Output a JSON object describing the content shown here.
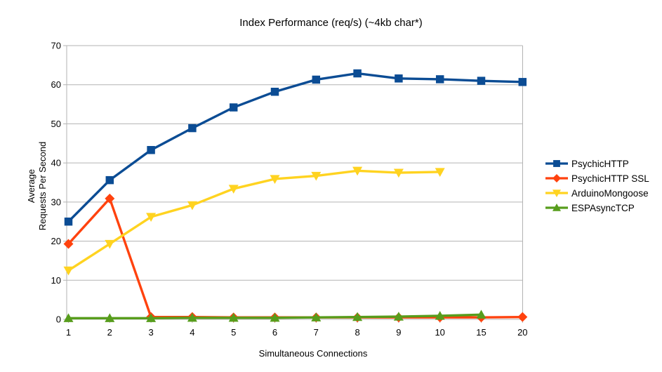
{
  "chart_data": {
    "type": "line",
    "title": "Index Performance (req/s) (~4kb char*)",
    "xlabel": "Simultaneous Connections",
    "ylabel": "Average Requests Per Second",
    "ylabel_lines": [
      "Average",
      "Requests Per Second"
    ],
    "categories": [
      "1",
      "2",
      "3",
      "4",
      "5",
      "6",
      "7",
      "8",
      "9",
      "10",
      "15",
      "20"
    ],
    "y_ticks": [
      0,
      10,
      20,
      30,
      40,
      50,
      60,
      70
    ],
    "ylim": [
      0,
      70
    ],
    "grid": "horizontal",
    "legend_position": "right",
    "series": [
      {
        "name": "PsychicHTTP",
        "color": "#0b4c94",
        "marker": "square",
        "values": [
          25.0,
          35.6,
          43.3,
          48.9,
          54.2,
          58.2,
          61.3,
          62.9,
          61.6,
          61.4,
          61.0,
          60.7
        ]
      },
      {
        "name": "PsychicHTTP SSL",
        "color": "#ff420e",
        "marker": "diamond",
        "values": [
          19.3,
          30.9,
          0.6,
          0.6,
          0.5,
          0.5,
          0.5,
          0.5,
          0.5,
          0.5,
          0.5,
          0.6
        ]
      },
      {
        "name": "ArduinoMongoose",
        "color": "#ffd320",
        "marker": "triangle-down",
        "values": [
          12.5,
          19.3,
          26.2,
          29.2,
          33.4,
          35.9,
          36.7,
          38.0,
          37.5,
          37.7
        ]
      },
      {
        "name": "ESPAsyncTCP",
        "color": "#579d1c",
        "marker": "triangle-up",
        "values": [
          0.3,
          0.3,
          0.3,
          0.4,
          0.4,
          0.4,
          0.5,
          0.6,
          0.7,
          0.9,
          1.2
        ]
      }
    ]
  },
  "colors": {
    "grid": "#b3b3b3",
    "text": "#000000",
    "background": "#ffffff"
  }
}
